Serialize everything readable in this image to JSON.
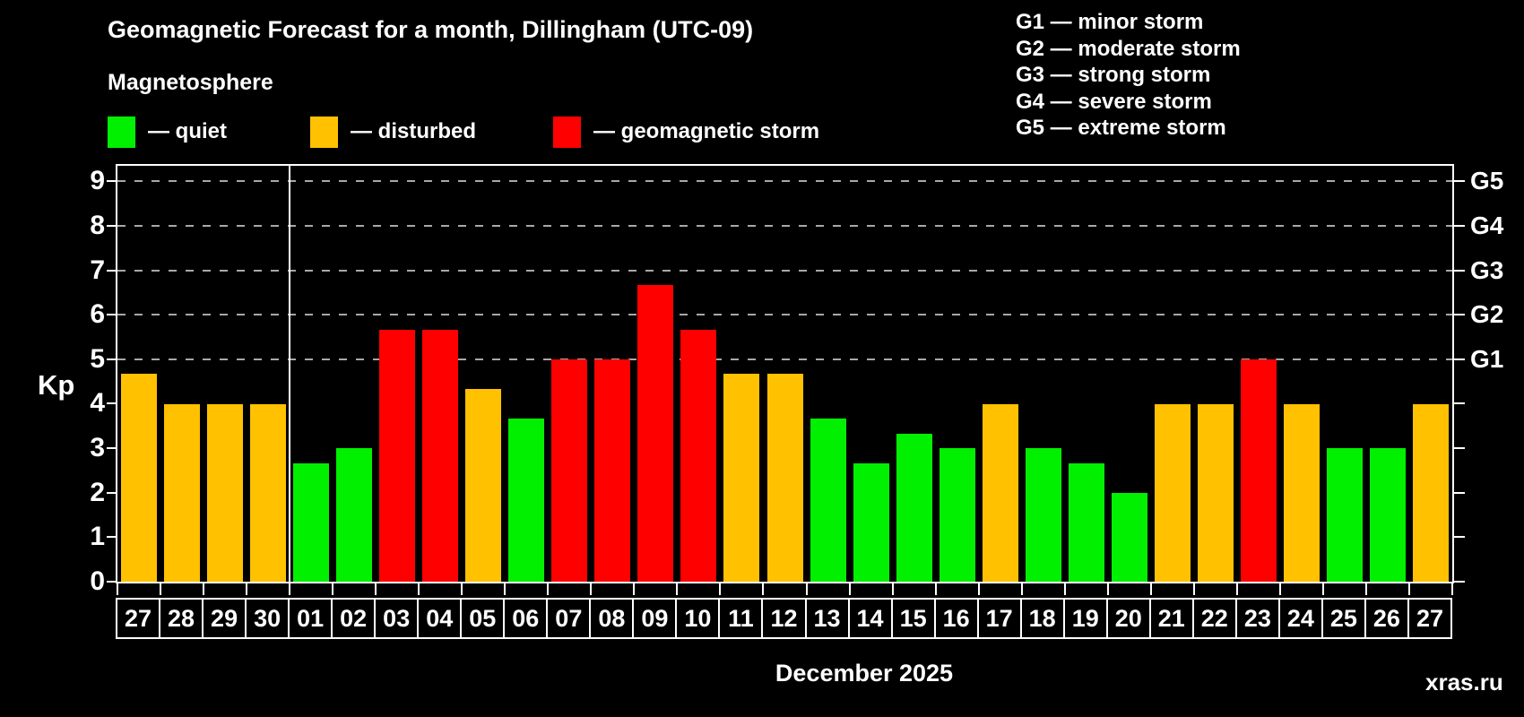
{
  "header": {
    "title": "Geomagnetic Forecast for a month, Dillingham (UTC-09)",
    "subtitle": "Magnetosphere",
    "legend": [
      {
        "key": "quiet",
        "label": "— quiet"
      },
      {
        "key": "disturbed",
        "label": "— disturbed"
      },
      {
        "key": "storm",
        "label": "— geomagnetic storm"
      }
    ],
    "g_scale_legend": [
      "G1 — minor storm",
      "G2 — moderate storm",
      "G3 — strong storm",
      "G4 — severe storm",
      "G5 — extreme storm"
    ]
  },
  "footer": {
    "xlabel": "December 2025",
    "watermark": "xras.ru"
  },
  "colors": {
    "quiet": "#00f000",
    "disturbed": "#ffc100",
    "storm": "#ff0000",
    "grid": "#a8a8a8",
    "axis": "#ffffff",
    "watermark": "#7a7a7a"
  },
  "chart_data": {
    "type": "bar",
    "title": "Geomagnetic Forecast for a month, Dillingham (UTC-09)",
    "subtitle": "Magnetosphere",
    "xlabel": "December 2025",
    "ylabel": "Kp",
    "ylim": [
      0,
      9.35
    ],
    "yticks": [
      0,
      1,
      2,
      3,
      4,
      5,
      6,
      7,
      8,
      9
    ],
    "gridlines_at": [
      5,
      6,
      7,
      8,
      9
    ],
    "grid": "dashed horizontal at storm thresholds only",
    "legend_position": "top",
    "right_axis": [
      {
        "label": "G1",
        "at": 5
      },
      {
        "label": "G2",
        "at": 6
      },
      {
        "label": "G3",
        "at": 7
      },
      {
        "label": "G4",
        "at": 8
      },
      {
        "label": "G5",
        "at": 9
      }
    ],
    "month_separator_after": 4,
    "days": [
      {
        "day": "27",
        "kp": 4.67,
        "state": "disturbed"
      },
      {
        "day": "28",
        "kp": 4.0,
        "state": "disturbed"
      },
      {
        "day": "29",
        "kp": 4.0,
        "state": "disturbed"
      },
      {
        "day": "30",
        "kp": 4.0,
        "state": "disturbed"
      },
      {
        "day": "01",
        "kp": 2.67,
        "state": "quiet"
      },
      {
        "day": "02",
        "kp": 3.0,
        "state": "quiet"
      },
      {
        "day": "03",
        "kp": 5.67,
        "state": "storm"
      },
      {
        "day": "04",
        "kp": 5.67,
        "state": "storm"
      },
      {
        "day": "05",
        "kp": 4.33,
        "state": "disturbed"
      },
      {
        "day": "06",
        "kp": 3.67,
        "state": "quiet"
      },
      {
        "day": "07",
        "kp": 5.0,
        "state": "storm"
      },
      {
        "day": "08",
        "kp": 5.0,
        "state": "storm"
      },
      {
        "day": "09",
        "kp": 6.67,
        "state": "storm"
      },
      {
        "day": "10",
        "kp": 5.67,
        "state": "storm"
      },
      {
        "day": "11",
        "kp": 4.67,
        "state": "disturbed"
      },
      {
        "day": "12",
        "kp": 4.67,
        "state": "disturbed"
      },
      {
        "day": "13",
        "kp": 3.67,
        "state": "quiet"
      },
      {
        "day": "14",
        "kp": 2.67,
        "state": "quiet"
      },
      {
        "day": "15",
        "kp": 3.33,
        "state": "quiet"
      },
      {
        "day": "16",
        "kp": 3.0,
        "state": "quiet"
      },
      {
        "day": "17",
        "kp": 4.0,
        "state": "disturbed"
      },
      {
        "day": "18",
        "kp": 3.0,
        "state": "quiet"
      },
      {
        "day": "19",
        "kp": 2.67,
        "state": "quiet"
      },
      {
        "day": "20",
        "kp": 2.0,
        "state": "quiet"
      },
      {
        "day": "21",
        "kp": 4.0,
        "state": "disturbed"
      },
      {
        "day": "22",
        "kp": 4.0,
        "state": "disturbed"
      },
      {
        "day": "23",
        "kp": 5.0,
        "state": "storm"
      },
      {
        "day": "24",
        "kp": 4.0,
        "state": "disturbed"
      },
      {
        "day": "25",
        "kp": 3.0,
        "state": "quiet"
      },
      {
        "day": "26",
        "kp": 3.0,
        "state": "quiet"
      },
      {
        "day": "27",
        "kp": 4.0,
        "state": "disturbed"
      }
    ]
  }
}
